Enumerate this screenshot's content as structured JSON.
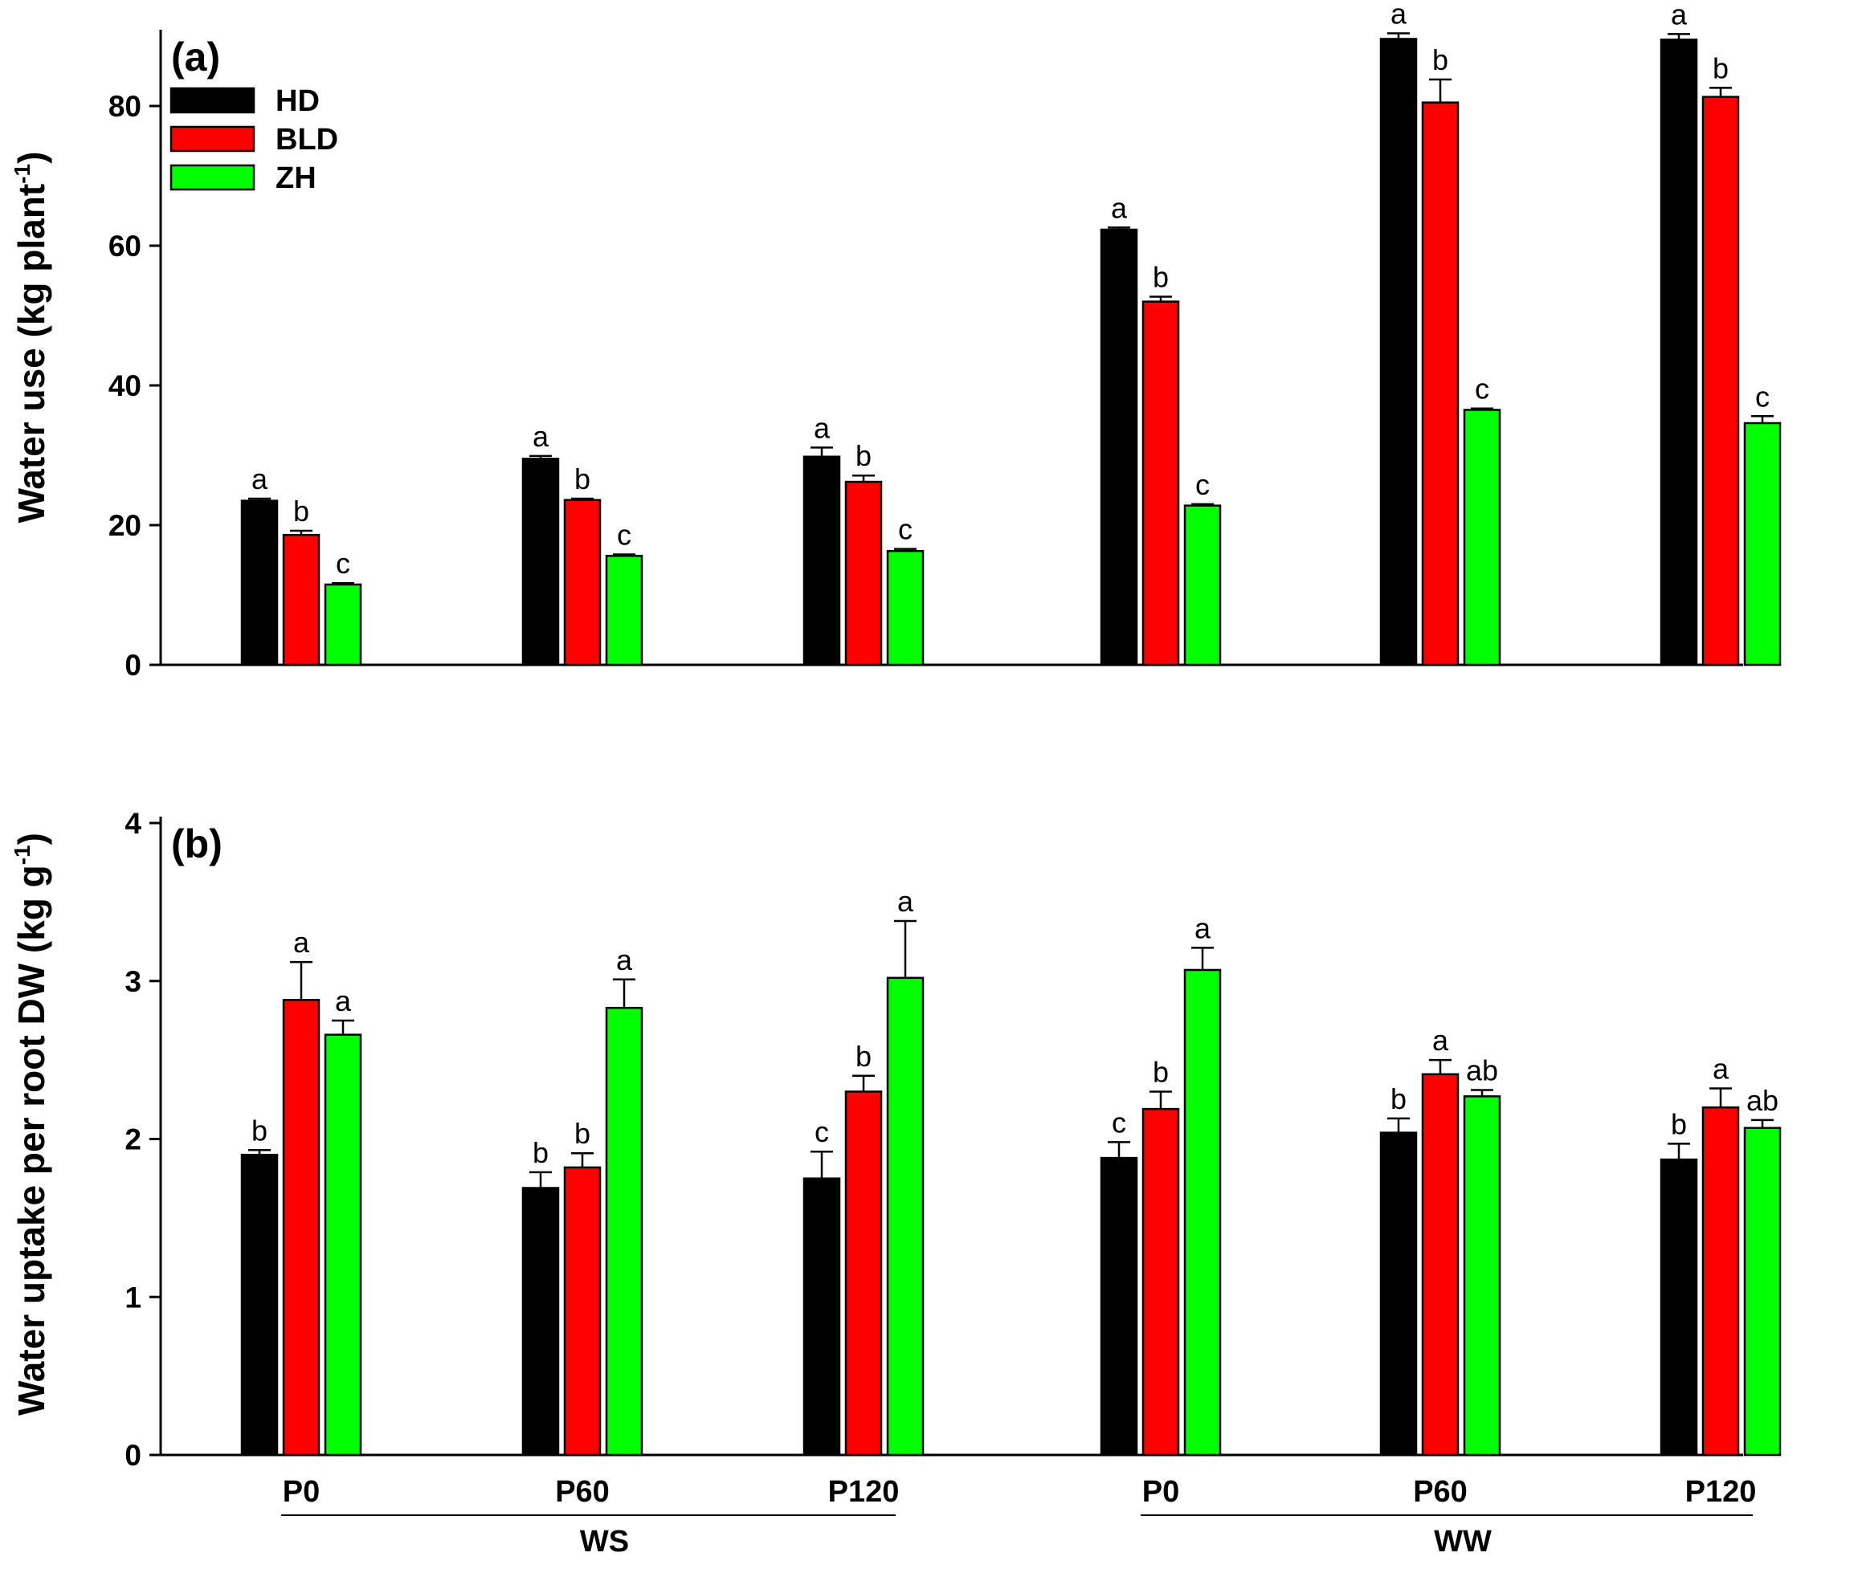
{
  "chart_data": [
    {
      "type": "bar",
      "panel_label": "(a)",
      "ylabel": "Water use (kg plant",
      "ylabel_sup": "-1",
      "ylabel_close": ")",
      "ylim": [
        0,
        90
      ],
      "yticks": [
        0,
        20,
        40,
        60,
        80
      ],
      "categories": [
        "P0",
        "P60",
        "P120",
        "P0",
        "P60",
        "P120"
      ],
      "series": [
        {
          "name": "HD",
          "color": "#000000",
          "values": [
            23.5,
            29.5,
            29.8,
            62.3,
            89.6,
            89.5
          ],
          "errors": [
            0.3,
            0.4,
            1.3,
            0.3,
            0.8,
            0.8
          ],
          "labels": [
            "a",
            "a",
            "a",
            "a",
            "a",
            "a"
          ]
        },
        {
          "name": "BLD",
          "color": "#ff0000",
          "values": [
            18.6,
            23.6,
            26.2,
            52.0,
            80.5,
            81.3
          ],
          "errors": [
            0.6,
            0.2,
            0.9,
            0.7,
            3.3,
            1.3
          ],
          "labels": [
            "b",
            "b",
            "b",
            "b",
            "b",
            "b"
          ]
        },
        {
          "name": "ZH",
          "color": "#00ff00",
          "values": [
            11.5,
            15.6,
            16.3,
            22.8,
            36.5,
            34.6
          ],
          "errors": [
            0.2,
            0.2,
            0.3,
            0.2,
            0.2,
            1.0
          ],
          "labels": [
            "c",
            "c",
            "c",
            "c",
            "c",
            "c"
          ]
        }
      ],
      "legend": {
        "position": "top-left",
        "entries": [
          "HD",
          "BLD",
          "ZH"
        ]
      }
    },
    {
      "type": "bar",
      "panel_label": "(b)",
      "ylabel": "Water uptake per root DW (kg g",
      "ylabel_sup": "-1",
      "ylabel_close": ")",
      "ylim": [
        0,
        4
      ],
      "yticks": [
        0,
        1,
        2,
        3,
        4
      ],
      "categories": [
        "P0",
        "P60",
        "P120",
        "P0",
        "P60",
        "P120"
      ],
      "groups": [
        {
          "label": "WS",
          "span": [
            0,
            2
          ]
        },
        {
          "label": "WW",
          "span": [
            3,
            5
          ]
        }
      ],
      "series": [
        {
          "name": "HD",
          "color": "#000000",
          "values": [
            1.9,
            1.69,
            1.75,
            1.88,
            2.04,
            1.87
          ],
          "errors": [
            0.03,
            0.1,
            0.17,
            0.1,
            0.09,
            0.1
          ],
          "labels": [
            "b",
            "b",
            "c",
            "c",
            "b",
            "b"
          ]
        },
        {
          "name": "BLD",
          "color": "#ff0000",
          "values": [
            2.88,
            1.82,
            2.3,
            2.19,
            2.41,
            2.2
          ],
          "errors": [
            0.24,
            0.09,
            0.1,
            0.11,
            0.09,
            0.12
          ],
          "labels": [
            "a",
            "b",
            "b",
            "b",
            "a",
            "a"
          ]
        },
        {
          "name": "ZH",
          "color": "#00ff00",
          "values": [
            2.66,
            2.83,
            3.02,
            3.07,
            2.27,
            2.07
          ],
          "errors": [
            0.09,
            0.18,
            0.36,
            0.14,
            0.04,
            0.05
          ],
          "labels": [
            "a",
            "a",
            "a",
            "a",
            "ab",
            "ab"
          ]
        }
      ]
    }
  ]
}
